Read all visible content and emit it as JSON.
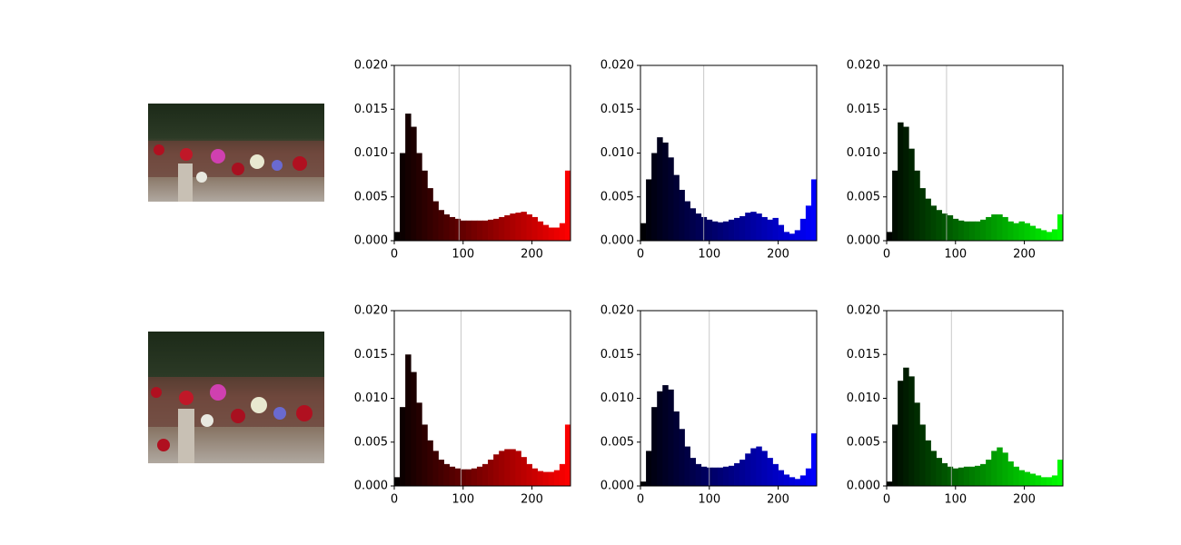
{
  "chart_data": [
    {
      "type": "histogram",
      "color": "#ff0000",
      "vline": 94,
      "bins": [
        0,
        8,
        16,
        24,
        32,
        40,
        48,
        56,
        64,
        72,
        80,
        88,
        96,
        104,
        112,
        120,
        128,
        136,
        144,
        152,
        160,
        168,
        176,
        184,
        192,
        200,
        208,
        216,
        224,
        232,
        240,
        248,
        256
      ],
      "values": [
        0.001,
        0.01,
        0.0145,
        0.013,
        0.01,
        0.008,
        0.006,
        0.0045,
        0.0035,
        0.003,
        0.0027,
        0.0025,
        0.0023,
        0.0023,
        0.0023,
        0.0023,
        0.0023,
        0.0024,
        0.0025,
        0.0027,
        0.0029,
        0.0031,
        0.0032,
        0.0033,
        0.003,
        0.0027,
        0.0022,
        0.0018,
        0.0015,
        0.0015,
        0.002,
        0.008
      ],
      "xlim": [
        0,
        256
      ],
      "xticks": [
        0,
        100,
        200
      ],
      "ylim": [
        0,
        0.02
      ],
      "yticks": [
        {
          "value": 0,
          "label": "0.000"
        },
        {
          "value": 0.005,
          "label": "0.005"
        },
        {
          "value": 0.01,
          "label": "0.010"
        },
        {
          "value": 0.015,
          "label": "0.015"
        },
        {
          "value": 0.02,
          "label": "0.020"
        }
      ]
    },
    {
      "type": "histogram",
      "color": "#0000ff",
      "vline": 92,
      "bins": [
        0,
        8,
        16,
        24,
        32,
        40,
        48,
        56,
        64,
        72,
        80,
        88,
        96,
        104,
        112,
        120,
        128,
        136,
        144,
        152,
        160,
        168,
        176,
        184,
        192,
        200,
        208,
        216,
        224,
        232,
        240,
        248,
        256
      ],
      "values": [
        0.002,
        0.007,
        0.01,
        0.0118,
        0.0112,
        0.0095,
        0.0075,
        0.0058,
        0.0045,
        0.0037,
        0.0031,
        0.0027,
        0.0024,
        0.0022,
        0.0021,
        0.0022,
        0.0024,
        0.0026,
        0.0028,
        0.0032,
        0.0033,
        0.0031,
        0.0027,
        0.0024,
        0.0026,
        0.0018,
        0.001,
        0.0008,
        0.0012,
        0.0025,
        0.004,
        0.007
      ],
      "xlim": [
        0,
        256
      ],
      "xticks": [
        0,
        100,
        200
      ],
      "ylim": [
        0,
        0.02
      ],
      "yticks": [
        {
          "value": 0,
          "label": "0.000"
        },
        {
          "value": 0.005,
          "label": "0.005"
        },
        {
          "value": 0.01,
          "label": "0.010"
        },
        {
          "value": 0.015,
          "label": "0.015"
        },
        {
          "value": 0.02,
          "label": "0.020"
        }
      ]
    },
    {
      "type": "histogram",
      "color": "#00ff00",
      "vline": 87,
      "bins": [
        0,
        8,
        16,
        24,
        32,
        40,
        48,
        56,
        64,
        72,
        80,
        88,
        96,
        104,
        112,
        120,
        128,
        136,
        144,
        152,
        160,
        168,
        176,
        184,
        192,
        200,
        208,
        216,
        224,
        232,
        240,
        248,
        256
      ],
      "values": [
        0.001,
        0.008,
        0.0135,
        0.013,
        0.0105,
        0.008,
        0.006,
        0.0048,
        0.004,
        0.0035,
        0.0031,
        0.0029,
        0.0025,
        0.0023,
        0.0022,
        0.0022,
        0.0022,
        0.0024,
        0.0027,
        0.003,
        0.003,
        0.0027,
        0.0022,
        0.002,
        0.0022,
        0.002,
        0.0017,
        0.0014,
        0.0012,
        0.001,
        0.0013,
        0.003
      ],
      "xlim": [
        0,
        256
      ],
      "xticks": [
        0,
        100,
        200
      ],
      "ylim": [
        0,
        0.02
      ],
      "yticks": [
        {
          "value": 0,
          "label": "0.000"
        },
        {
          "value": 0.005,
          "label": "0.005"
        },
        {
          "value": 0.01,
          "label": "0.010"
        },
        {
          "value": 0.015,
          "label": "0.015"
        },
        {
          "value": 0.02,
          "label": "0.020"
        }
      ]
    },
    {
      "type": "histogram",
      "color": "#ff0000",
      "vline": 97,
      "bins": [
        0,
        8,
        16,
        24,
        32,
        40,
        48,
        56,
        64,
        72,
        80,
        88,
        96,
        104,
        112,
        120,
        128,
        136,
        144,
        152,
        160,
        168,
        176,
        184,
        192,
        200,
        208,
        216,
        224,
        232,
        240,
        248,
        256
      ],
      "values": [
        0.001,
        0.009,
        0.015,
        0.013,
        0.0095,
        0.007,
        0.0052,
        0.004,
        0.003,
        0.0025,
        0.0022,
        0.002,
        0.0019,
        0.0019,
        0.002,
        0.0022,
        0.0025,
        0.003,
        0.0036,
        0.004,
        0.0042,
        0.0042,
        0.004,
        0.0033,
        0.0025,
        0.002,
        0.0017,
        0.0016,
        0.0016,
        0.0018,
        0.0025,
        0.007
      ],
      "xlim": [
        0,
        256
      ],
      "xticks": [
        0,
        100,
        200
      ],
      "ylim": [
        0,
        0.02
      ],
      "yticks": [
        {
          "value": 0,
          "label": "0.000"
        },
        {
          "value": 0.005,
          "label": "0.005"
        },
        {
          "value": 0.01,
          "label": "0.010"
        },
        {
          "value": 0.015,
          "label": "0.015"
        },
        {
          "value": 0.02,
          "label": "0.020"
        }
      ]
    },
    {
      "type": "histogram",
      "color": "#0000ff",
      "vline": 100,
      "bins": [
        0,
        8,
        16,
        24,
        32,
        40,
        48,
        56,
        64,
        72,
        80,
        88,
        96,
        104,
        112,
        120,
        128,
        136,
        144,
        152,
        160,
        168,
        176,
        184,
        192,
        200,
        208,
        216,
        224,
        232,
        240,
        248,
        256
      ],
      "values": [
        0.0005,
        0.004,
        0.009,
        0.0108,
        0.0115,
        0.011,
        0.0085,
        0.0065,
        0.0045,
        0.0032,
        0.0025,
        0.0022,
        0.0021,
        0.0021,
        0.0021,
        0.0022,
        0.0023,
        0.0026,
        0.003,
        0.0037,
        0.0043,
        0.0045,
        0.004,
        0.0032,
        0.0025,
        0.0018,
        0.0013,
        0.001,
        0.0008,
        0.0012,
        0.002,
        0.006
      ],
      "xlim": [
        0,
        256
      ],
      "xticks": [
        0,
        100,
        200
      ],
      "ylim": [
        0,
        0.02
      ],
      "yticks": [
        {
          "value": 0,
          "label": "0.000"
        },
        {
          "value": 0.005,
          "label": "0.005"
        },
        {
          "value": 0.01,
          "label": "0.010"
        },
        {
          "value": 0.015,
          "label": "0.015"
        },
        {
          "value": 0.02,
          "label": "0.020"
        }
      ]
    },
    {
      "type": "histogram",
      "color": "#00ff00",
      "vline": 94,
      "bins": [
        0,
        8,
        16,
        24,
        32,
        40,
        48,
        56,
        64,
        72,
        80,
        88,
        96,
        104,
        112,
        120,
        128,
        136,
        144,
        152,
        160,
        168,
        176,
        184,
        192,
        200,
        208,
        216,
        224,
        232,
        240,
        248,
        256
      ],
      "values": [
        0.0005,
        0.007,
        0.012,
        0.0135,
        0.0125,
        0.0095,
        0.007,
        0.0052,
        0.004,
        0.0032,
        0.0026,
        0.0022,
        0.002,
        0.0021,
        0.0022,
        0.0022,
        0.0023,
        0.0025,
        0.003,
        0.004,
        0.0044,
        0.0038,
        0.0028,
        0.0022,
        0.0018,
        0.0016,
        0.0014,
        0.0012,
        0.001,
        0.001,
        0.0012,
        0.003
      ],
      "xlim": [
        0,
        256
      ],
      "xticks": [
        0,
        100,
        200
      ],
      "ylim": [
        0,
        0.02
      ],
      "yticks": [
        {
          "value": 0,
          "label": "0.000"
        },
        {
          "value": 0.005,
          "label": "0.005"
        },
        {
          "value": 0.01,
          "label": "0.010"
        },
        {
          "value": 0.015,
          "label": "0.015"
        },
        {
          "value": 0.02,
          "label": "0.020"
        }
      ]
    }
  ]
}
